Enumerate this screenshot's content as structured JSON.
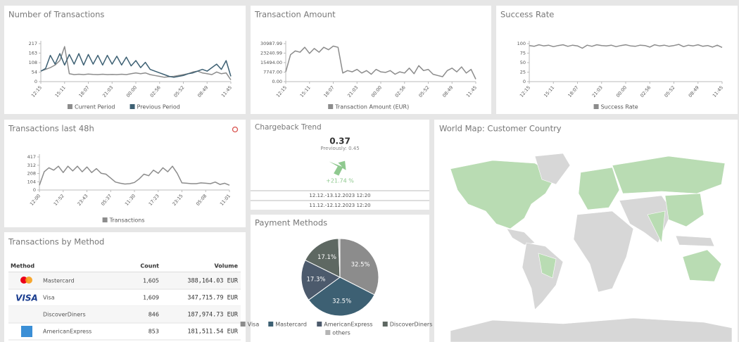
{
  "chart_data": [
    {
      "type": "line",
      "title": "Number of Transactions",
      "categories": [
        "12:15",
        null,
        null,
        null,
        null,
        "15:11",
        null,
        null,
        null,
        null,
        "18:07",
        null,
        null,
        null,
        null,
        "21:03",
        null,
        null,
        null,
        null,
        "00:00",
        null,
        null,
        null,
        null,
        "02:56",
        null,
        null,
        null,
        null,
        "05:52",
        null,
        null,
        null,
        null,
        "08:49",
        null,
        null,
        null,
        null,
        "11:45"
      ],
      "series": [
        {
          "name": "Current Period",
          "color": "#8c8c8c",
          "values": [
            60,
            70,
            80,
            95,
            120,
            200,
            45,
            40,
            42,
            40,
            43,
            41,
            40,
            42,
            40,
            41,
            40,
            42,
            40,
            45,
            50,
            45,
            50,
            40,
            35,
            30,
            25,
            28,
            30,
            35,
            40,
            45,
            55,
            60,
            50,
            45,
            40,
            55,
            45,
            50,
            10
          ]
        },
        {
          "name": "Previous Period",
          "color": "#3d6073",
          "values": [
            60,
            75,
            150,
            100,
            160,
            95,
            155,
            100,
            160,
            95,
            155,
            100,
            150,
            95,
            150,
            100,
            145,
            95,
            140,
            90,
            120,
            80,
            110,
            70,
            60,
            50,
            40,
            30,
            25,
            30,
            35,
            45,
            50,
            60,
            70,
            60,
            80,
            100,
            70,
            120,
            30
          ]
        }
      ],
      "ylim": [
        0,
        217
      ],
      "yticks": [
        0,
        54,
        108,
        163,
        217
      ]
    },
    {
      "type": "line",
      "title": "Transaction Amount",
      "categories": [
        "12:15",
        null,
        null,
        null,
        null,
        "15:11",
        null,
        null,
        null,
        null,
        "18:07",
        null,
        null,
        null,
        null,
        "21:03",
        null,
        null,
        null,
        null,
        "00:00",
        null,
        null,
        null,
        null,
        "02:56",
        null,
        null,
        null,
        null,
        "05:52",
        null,
        null,
        null,
        null,
        "08:49",
        null,
        null,
        null,
        null,
        "11:45"
      ],
      "series": [
        {
          "name": "Transaction Amount (EUR)",
          "color": "#8c8c8c",
          "values": [
            8000,
            22000,
            25000,
            24000,
            28000,
            23000,
            27000,
            24000,
            28000,
            26000,
            29000,
            28000,
            7000,
            9000,
            8000,
            10000,
            7000,
            9000,
            6000,
            10000,
            8000,
            7500,
            9000,
            6000,
            8000,
            7000,
            11000,
            6500,
            13000,
            9000,
            10000,
            6000,
            5000,
            4000,
            9000,
            11000,
            8000,
            12000,
            7000,
            10000,
            2000
          ]
        }
      ],
      "ylim": [
        0,
        30987.99
      ],
      "yticks": [
        {
          "value": 0,
          "label": "0.00"
        },
        {
          "value": 7747,
          "label": "7747.00"
        },
        {
          "value": 15494,
          "label": "15494.00"
        },
        {
          "value": 23240.99,
          "label": "23240.99"
        },
        {
          "value": 30987.99,
          "label": "30987.99"
        }
      ]
    },
    {
      "type": "line",
      "title": "Success Rate",
      "categories": [
        "12:15",
        null,
        null,
        null,
        null,
        "15:11",
        null,
        null,
        null,
        null,
        "18:07",
        null,
        null,
        null,
        null,
        "21:03",
        null,
        null,
        null,
        null,
        "00:00",
        null,
        null,
        null,
        null,
        "02:56",
        null,
        null,
        null,
        null,
        "05:52",
        null,
        null,
        null,
        null,
        "08:49",
        null,
        null,
        null,
        null,
        "11:45"
      ],
      "series": [
        {
          "name": "Success Rate",
          "color": "#8c8c8c",
          "values": [
            95,
            93,
            97,
            94,
            96,
            92,
            95,
            97,
            93,
            96,
            94,
            88,
            96,
            93,
            97,
            95,
            94,
            96,
            92,
            95,
            97,
            94,
            93,
            96,
            95,
            91,
            97,
            94,
            96,
            93,
            95,
            98,
            92,
            96,
            94,
            97,
            93,
            95,
            91,
            96,
            90
          ]
        }
      ],
      "ylim": [
        0,
        100
      ],
      "yticks": [
        0,
        25,
        50,
        75,
        100
      ]
    },
    {
      "type": "line",
      "title": "Transactions last 48h",
      "categories": [
        "12:00",
        null,
        null,
        null,
        null,
        "17:52",
        null,
        null,
        null,
        null,
        "23:43",
        null,
        null,
        null,
        null,
        "05:37",
        null,
        null,
        null,
        null,
        "11:30",
        null,
        null,
        null,
        null,
        "17:23",
        null,
        null,
        null,
        null,
        "23:15",
        null,
        null,
        null,
        null,
        "05:08",
        null,
        null,
        null,
        null,
        "11:01"
      ],
      "series": [
        {
          "name": "Transactions",
          "color": "#8c8c8c",
          "values": [
            60,
            230,
            280,
            250,
            300,
            220,
            300,
            240,
            300,
            230,
            290,
            220,
            270,
            210,
            200,
            150,
            100,
            85,
            75,
            80,
            95,
            140,
            200,
            180,
            250,
            210,
            280,
            230,
            300,
            210,
            90,
            85,
            80,
            80,
            90,
            85,
            80,
            100,
            70,
            85,
            60
          ]
        }
      ],
      "ylim": [
        0,
        417
      ],
      "yticks": [
        0,
        104,
        208,
        312,
        417
      ]
    },
    {
      "type": "pie",
      "title": "Payment Methods",
      "categories": [
        "Visa",
        "Mastercard",
        "AmericanExpress",
        "DiscoverDiners",
        "others"
      ],
      "values": [
        32.5,
        32.5,
        17.3,
        17.1,
        0.6
      ],
      "value_labels": [
        "32.5%",
        "32.5%",
        "17.3%",
        "17.1%",
        null
      ],
      "colors": [
        "#8c8c8c",
        "#3d6073",
        "#4c5a6c",
        "#5e6862",
        "#b5b5b5"
      ]
    }
  ],
  "chargeback": {
    "title": "Chargeback Trend",
    "value": "0.37",
    "previous": "Previously: 0.45",
    "change": "+21.74 %",
    "periods": [
      "12.12.-13.12.2023 12:20",
      "11.12.-12.12.2023 12:20"
    ]
  },
  "map": {
    "title": "World Map: Customer Country"
  },
  "table": {
    "title": "Transactions by Method",
    "columns": [
      "Method",
      "Count",
      "Volume"
    ],
    "rows": [
      {
        "method": "Mastercard",
        "count": "1,605",
        "volume": "388,164.03 EUR"
      },
      {
        "logo": "VISA",
        "method": "Visa",
        "count": "1,609",
        "volume": "347,715.79 EUR"
      },
      {
        "method": "DiscoverDiners",
        "count": "846",
        "volume": "187,974.73 EUR"
      },
      {
        "method": "AmericanExpress",
        "count": "853",
        "volume": "181,511.54 EUR"
      }
    ]
  }
}
